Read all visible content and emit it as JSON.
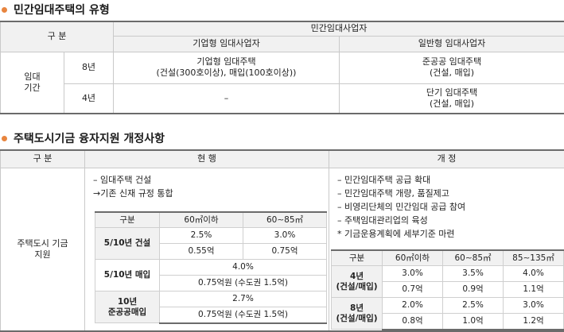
{
  "section1": {
    "title": "민간임대주택의 유형",
    "header": {
      "gubun": "구 분",
      "group": "민간임대사업자",
      "col_corp": "기업형 임대사업자",
      "col_general": "일반형 임대사업자"
    },
    "row_label": "임대 기간",
    "rows": [
      {
        "period": "8년",
        "corp_line1": "기업형 임대주택",
        "corp_line2": "(건설(300호이상), 매입(100호이상))",
        "general_line1": "준공공 임대주택",
        "general_line2": "(건설, 매입)"
      },
      {
        "period": "4년",
        "corp_line1": "–",
        "general_line1": "단기 임대주택",
        "general_line2": "(건설, 매입)"
      }
    ]
  },
  "section2": {
    "title": "주택도시기금 융자지원 개정사항",
    "header": {
      "gubun": "구 분",
      "current": "현 행",
      "revised": "개 정"
    },
    "row_label": "주택도시 기금지원",
    "current": {
      "bullets": [
        "– 임대주택 건설",
        "→기존 신재 규정 통합"
      ],
      "table": {
        "headers": [
          "구분",
          "60㎡이하",
          "60∼85㎡"
        ],
        "build_label": "5/10년 건설",
        "build_row1": [
          "2.5%",
          "3.0%"
        ],
        "build_row2": [
          "0.55억",
          "0.75억"
        ],
        "buy_label": "5/10년 매입",
        "buy_rate": "4.0%",
        "buy_amount": "0.75억원 (수도권 1.5억)",
        "public_label_1": "10년",
        "public_label_2": "준공공매입",
        "public_rate": "2.7%",
        "public_amount": "0.75억원 (수도권 1.5억)"
      }
    },
    "revised": {
      "bullets": [
        "– 민간임대주택 공급 확대",
        "– 민간임대주택 개량, 품질제고",
        "– 비영리단체의 민간임대 공급 참여",
        "– 주택임대관리업의 육성",
        "* 기금운용계획에 세부기준 마련"
      ],
      "table": {
        "headers": [
          "구분",
          "60㎡이하",
          "60∼85㎡",
          "85∼135㎡"
        ],
        "row4_label_1": "4년",
        "row4_label_2": "(건설/매입)",
        "row4_rates": [
          "3.0%",
          "3.5%",
          "4.0%"
        ],
        "row4_amounts": [
          "0.7억",
          "0.9억",
          "1.1억"
        ],
        "row8_label_1": "8년",
        "row8_label_2": "(건설/매입)",
        "row8_rates": [
          "2.0%",
          "2.5%",
          "3.0%"
        ],
        "row8_amounts": [
          "0.8억",
          "1.0억",
          "1.2억"
        ]
      }
    }
  },
  "colors": {
    "accent_dot": "#e8853f",
    "header_bg": "#f1f1f1",
    "rule": "#6b6b6b",
    "grid": "#c9c9c9"
  }
}
